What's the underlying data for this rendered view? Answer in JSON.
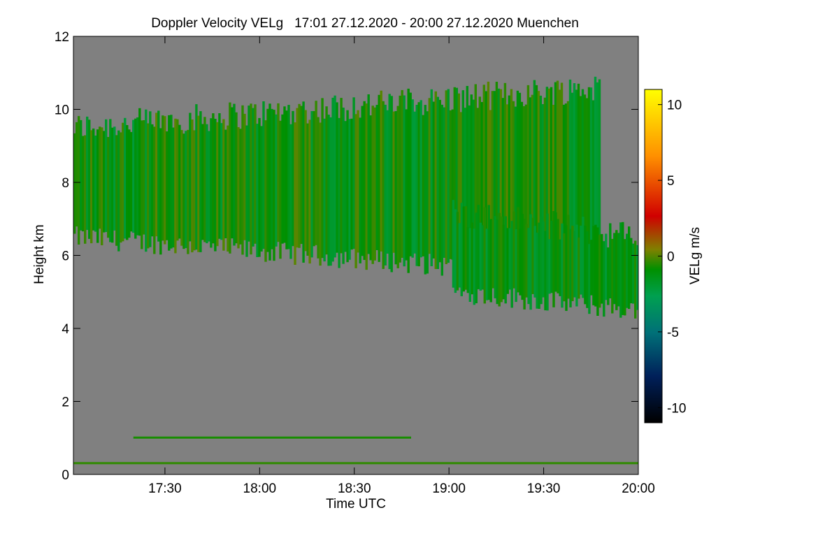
{
  "chart_data": {
    "type": "heatmap",
    "title": "Doppler Velocity VELg   17:01 27.12.2020 - 20:00 27.12.2020 Muenchen",
    "xlabel": "Time UTC",
    "ylabel": "Height km",
    "x_range": [
      "17:01",
      "20:00"
    ],
    "x_ticks": [
      "17:30",
      "18:00",
      "18:30",
      "19:00",
      "19:30",
      "20:00"
    ],
    "ylim": [
      0,
      12
    ],
    "y_ticks": [
      "0",
      "2",
      "4",
      "6",
      "8",
      "10",
      "12"
    ],
    "colorbar": {
      "label": "VELg m/s",
      "range": [
        -11,
        11
      ],
      "ticks": [
        "10",
        "5",
        "0",
        "-5",
        "-10"
      ],
      "colors": [
        "#000000",
        "#00205a",
        "#007078",
        "#00a050",
        "#009000",
        "#808000",
        "#d00000",
        "#ff9000",
        "#ffff00"
      ]
    },
    "background_color": "#808080",
    "features": [
      {
        "type": "cloud",
        "x_start": "17:01",
        "x_end": "19:48",
        "base_km": [
          6.5,
          5.4
        ],
        "top_km": [
          9.5,
          10.6
        ],
        "velocity_ms": [
          -2,
          2
        ]
      },
      {
        "type": "cloud",
        "x_start": "19:01",
        "x_end": "20:00",
        "base_km": [
          5.0,
          4.5
        ],
        "top_km": [
          7.2,
          6.5
        ],
        "velocity_ms": [
          -2,
          1
        ]
      },
      {
        "type": "layer",
        "x_start": "17:20",
        "x_end": "18:48",
        "height_km": 1.0,
        "velocity_ms": 0.5
      },
      {
        "type": "layer",
        "x_start": "17:01",
        "x_end": "20:00",
        "height_km": 0.3,
        "velocity_ms": 1
      }
    ]
  }
}
